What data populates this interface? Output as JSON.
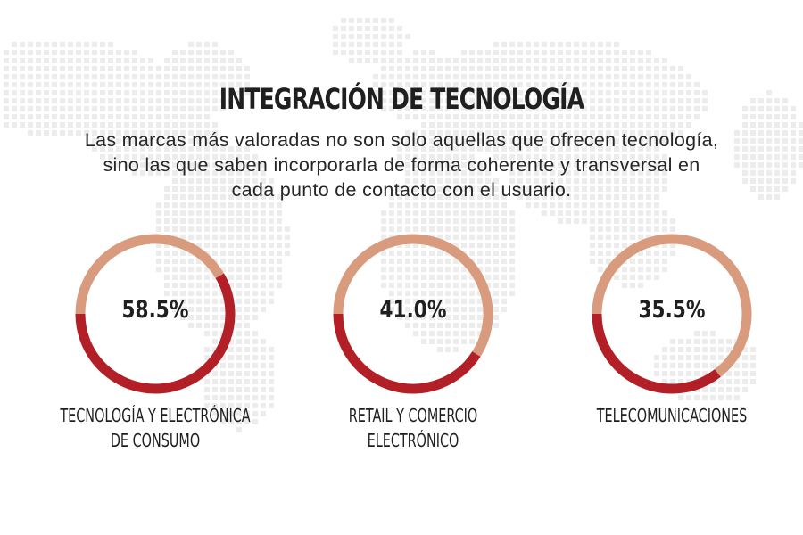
{
  "title": "INTEGRACIÓN DE TECNOLOGÍA",
  "subtitle": "Las marcas más valoradas no son solo aquellas que ofrecen tecnología, sino las que saben incorporarla de forma coherente y transversal en cada punto de contacto con el usuario.",
  "colors": {
    "value_arc": "#b31f26",
    "remainder_arc": "#d99b7e",
    "text": "#1f1f1f",
    "map_dots": "#ececec"
  },
  "chart_data": {
    "type": "pie",
    "variant": "donut",
    "unit": "%",
    "items": [
      {
        "label": "TECNOLOGÍA Y ELECTRÓNICA\nDE CONSUMO",
        "value": 58.5,
        "value_label": "58.5%"
      },
      {
        "label": "RETAIL Y COMERCIO\nELECTRÓNICO",
        "value": 41.0,
        "value_label": "41.0%"
      },
      {
        "label": "TELECOMUNICACIONES",
        "value": 35.5,
        "value_label": "35.5%"
      }
    ]
  }
}
